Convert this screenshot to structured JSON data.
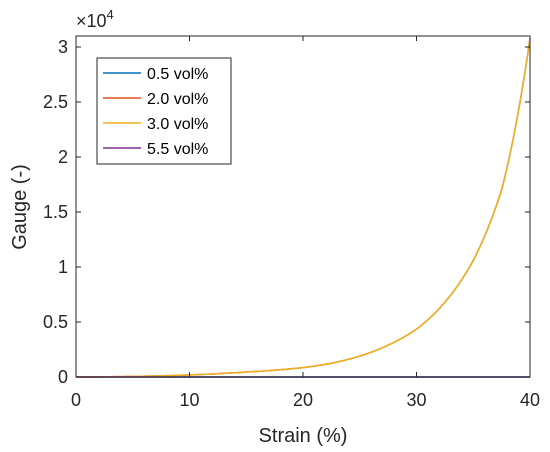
{
  "chart_data": {
    "type": "line",
    "title": "",
    "xlabel": "Strain (%)",
    "ylabel": "Gauge (-)",
    "xlim": [
      0,
      40
    ],
    "ylim": [
      0,
      31000
    ],
    "y_exponent_label": "×10",
    "y_exponent_power": "4",
    "x_ticks": [
      0,
      10,
      20,
      30,
      40
    ],
    "x_tick_labels": [
      "0",
      "10",
      "20",
      "30",
      "40"
    ],
    "y_ticks": [
      0,
      5000,
      10000,
      15000,
      20000,
      25000,
      30000
    ],
    "y_tick_labels": [
      "0",
      "0.5",
      "1",
      "1.5",
      "2",
      "2.5",
      "3"
    ],
    "grid": false,
    "legend_position": "top-left",
    "series": [
      {
        "name": "0.5 vol%",
        "color": "#0072BD",
        "x": [
          0,
          5,
          10,
          15,
          20,
          25,
          30,
          35,
          40
        ],
        "y": [
          0,
          0,
          0,
          0,
          0,
          0,
          0,
          0,
          0
        ]
      },
      {
        "name": "2.0 vol%",
        "color": "#D95319",
        "x": [
          0,
          2.5,
          5,
          7.5,
          10,
          12.5,
          15,
          17.5,
          20,
          22.5,
          25,
          27.5,
          30,
          32.5,
          35,
          37.5,
          40
        ],
        "y": [
          0,
          20,
          60,
          110,
          190,
          300,
          450,
          620,
          850,
          1250,
          1900,
          2900,
          4350,
          6800,
          10600,
          17000,
          30800
        ]
      },
      {
        "name": "3.0 vol%",
        "color": "#EDB120",
        "x": [
          0,
          2.5,
          5,
          7.5,
          10,
          12.5,
          15,
          17.5,
          20,
          22.5,
          25,
          27.5,
          30,
          32.5,
          35,
          37.5,
          40
        ],
        "y": [
          0,
          20,
          60,
          110,
          190,
          300,
          450,
          620,
          850,
          1250,
          1900,
          2900,
          4350,
          6800,
          10600,
          17000,
          30800
        ]
      },
      {
        "name": "5.5 vol%",
        "color": "#7E2F8E",
        "x": [
          0,
          5,
          10,
          15,
          20,
          25,
          30,
          35,
          40
        ],
        "y": [
          0,
          0,
          0,
          0,
          0,
          0,
          0,
          0,
          0
        ]
      }
    ]
  }
}
